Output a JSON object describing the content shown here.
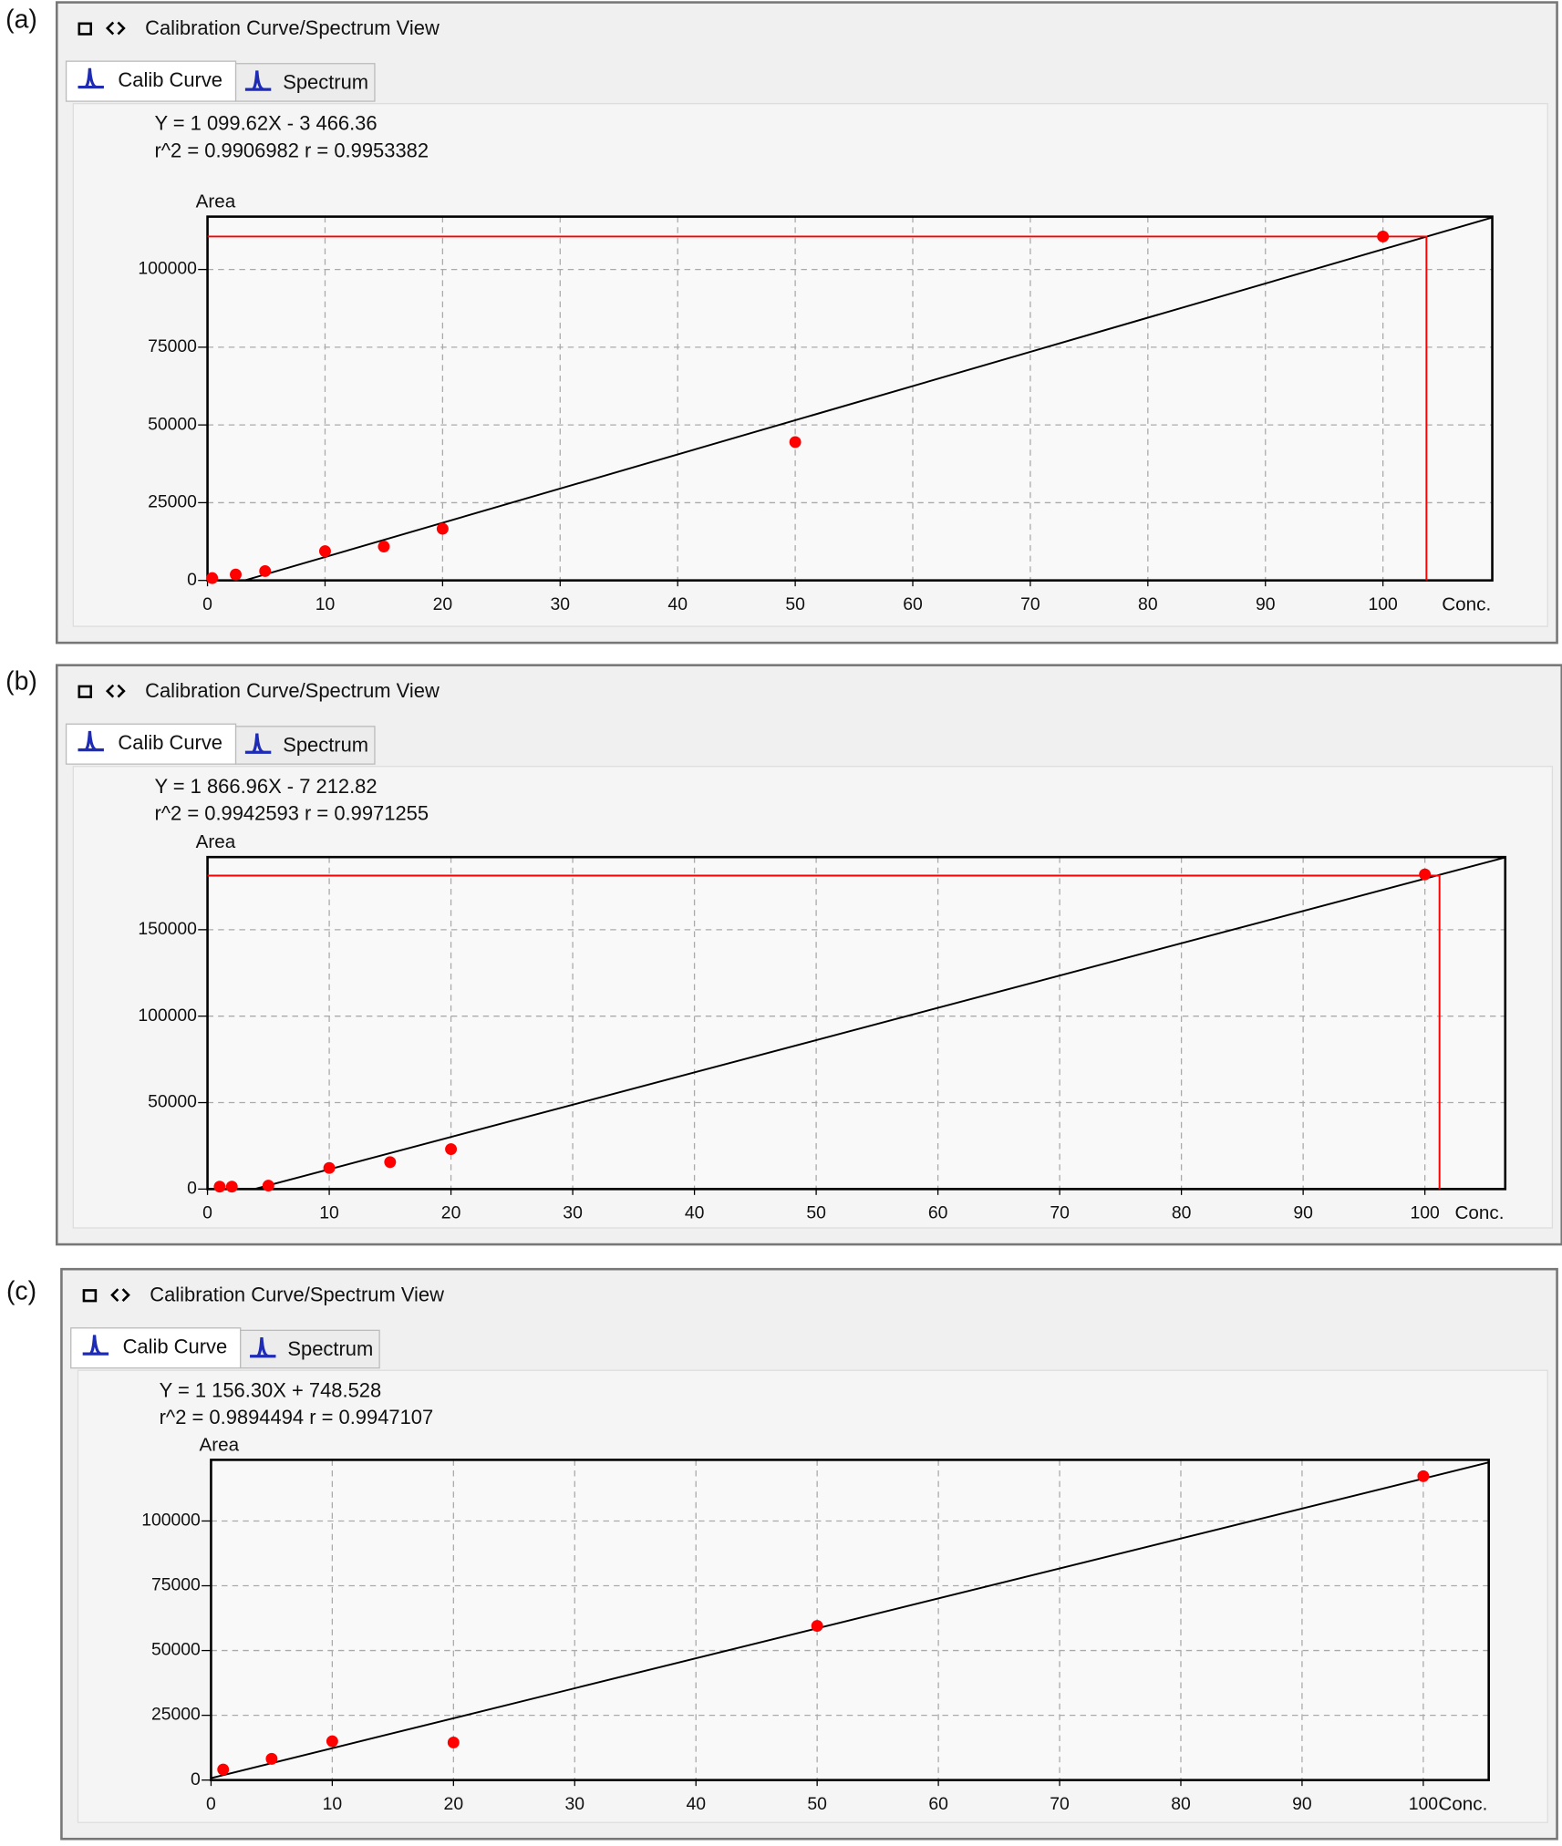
{
  "chart_data": [
    {
      "type": "scatter",
      "panel_label": "(a)",
      "window_title": "Calibration Curve/Spectrum View",
      "tabs": [
        "Calib Curve",
        "Spectrum"
      ],
      "equation": "Y = 1 099.62X - 3 466.36",
      "stats": "r^2 = 0.9906982  r = 0.9953382",
      "y_label": "Area",
      "x_label": "Conc.",
      "x": [
        0.4,
        2.4,
        4.9,
        10,
        15,
        20,
        50,
        100
      ],
      "values": [
        750,
        1900,
        3000,
        9400,
        10900,
        16600,
        44500,
        110600
      ],
      "color": "#ff0000",
      "fit": {
        "x": [
          3.2,
          109.3
        ],
        "y": [
          53,
          116720
        ]
      },
      "crosshair": {
        "x": 103.7,
        "y": 110600
      },
      "xlim": [
        0,
        109.3
      ],
      "ylim": [
        0,
        117000
      ],
      "xticks": [
        0,
        10,
        20,
        30,
        40,
        50,
        60,
        70,
        80,
        90,
        100
      ],
      "yticks": [
        0,
        25000,
        50000,
        75000,
        100000
      ],
      "grid": true
    },
    {
      "type": "scatter",
      "panel_label": "(b)",
      "window_title": "Calibration Curve/Spectrum View",
      "tabs": [
        "Calib Curve",
        "Spectrum"
      ],
      "equation": "Y = 1 866.96X - 7 212.82",
      "stats": "r^2 = 0.9942593  r = 0.9971255",
      "y_label": "Area",
      "x_label": "Conc.",
      "x": [
        1,
        2,
        5,
        10,
        15,
        20,
        100
      ],
      "values": [
        1400,
        1400,
        2000,
        12200,
        15600,
        23100,
        182000
      ],
      "color": "#ff0000",
      "fit": {
        "x": [
          3.9,
          106.6
        ],
        "y": [
          68,
          191800
        ]
      },
      "crosshair": {
        "x": 101.2,
        "y": 181300
      },
      "xlim": [
        0,
        106.6
      ],
      "ylim": [
        0,
        192000
      ],
      "xticks": [
        0,
        10,
        20,
        30,
        40,
        50,
        60,
        70,
        80,
        90,
        100
      ],
      "yticks": [
        0,
        50000,
        100000,
        150000
      ],
      "grid": true
    },
    {
      "type": "scatter",
      "panel_label": "(c)",
      "window_title": "Calibration Curve/Spectrum View",
      "tabs": [
        "Calib Curve",
        "Spectrum"
      ],
      "equation": "Y = 1 156.30X + 748.528",
      "stats": "r^2 = 0.9894494  r = 0.9947107",
      "y_label": "Area",
      "x_label": "Conc.",
      "x": [
        1,
        5,
        10,
        20,
        50,
        100
      ],
      "values": [
        4100,
        8200,
        15000,
        14500,
        59500,
        117300
      ],
      "color": "#ff0000",
      "fit": {
        "x": [
          0,
          105.4
        ],
        "y": [
          750,
          122600
        ]
      },
      "xlim": [
        0,
        105.4
      ],
      "ylim": [
        0,
        123600
      ],
      "xticks": [
        0,
        10,
        20,
        30,
        40,
        50,
        60,
        70,
        80,
        90,
        100
      ],
      "yticks": [
        0,
        25000,
        50000,
        75000,
        100000
      ],
      "grid": true
    }
  ]
}
